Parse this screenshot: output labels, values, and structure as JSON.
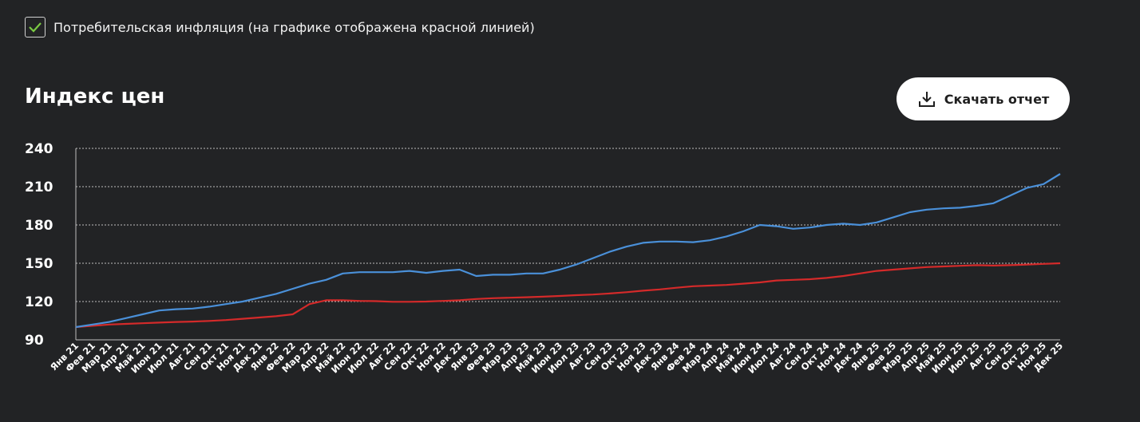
{
  "filter": {
    "checked": true,
    "label": "Потребительская инфляция (на графике отображена красной линией)"
  },
  "header": {
    "title": "Индекс цен",
    "download_label": "Скачать отчет",
    "download_icon": "download-icon"
  },
  "colors": {
    "background": "#222325",
    "price_index_line": "#4a90d9",
    "inflation_line": "#d42a2a",
    "check": "#7ac943",
    "grid": "#bdbdbd"
  },
  "chart_data": {
    "type": "line",
    "title": "",
    "xlabel": "",
    "ylabel": "",
    "ylim": [
      90,
      240
    ],
    "yticks": [
      90,
      120,
      150,
      180,
      210,
      240
    ],
    "grid": "horizontal dotted",
    "categories": [
      "Янв 21",
      "Фев 21",
      "Мар 21",
      "Апр 21",
      "Май 21",
      "Июн 21",
      "Июл 21",
      "Авг 21",
      "Сен 21",
      "Окт 21",
      "Ноя 21",
      "Дек 21",
      "Янв 22",
      "Фев 22",
      "Мар 22",
      "Апр 22",
      "Май 22",
      "Июн 22",
      "Июл 22",
      "Авг 22",
      "Сен 22",
      "Окт 22",
      "Ноя 22",
      "Дек 22",
      "Янв 23",
      "Фев 23",
      "Мар 23",
      "Апр 23",
      "Май 23",
      "Июн 23",
      "Июл 23",
      "Авг 23",
      "Сен 23",
      "Окт 23",
      "Ноя 23",
      "Дек 23",
      "Янв 24",
      "Фев 24",
      "Мар 24",
      "Апр 24",
      "Май 24",
      "Июн 24",
      "Июл 24",
      "Авг 24",
      "Сен 24",
      "Окт 24",
      "Ноя 24",
      "Дек 24",
      "Янв 25",
      "Фев 25",
      "Мар 25",
      "Апр 25",
      "Май 25",
      "Июн 25",
      "Июл 25",
      "Авг 25",
      "Сен 25",
      "Окт 25",
      "Ноя 25",
      "Дек 25"
    ],
    "series": [
      {
        "key": "price_index",
        "values": [
          100,
          102,
          104,
          107,
          110,
          113,
          114,
          114.5,
          116,
          118,
          120,
          123,
          126,
          130,
          134,
          137,
          142,
          143,
          143,
          143,
          144,
          142.5,
          144,
          145,
          140,
          141,
          141,
          142,
          142,
          145,
          149,
          154,
          159,
          163,
          166,
          167,
          167,
          166.5,
          168,
          171,
          175,
          180,
          179,
          177,
          178,
          180,
          181,
          180,
          182,
          186,
          190,
          192,
          193,
          193.5,
          195,
          197,
          203,
          209,
          212,
          220
        ]
      },
      {
        "key": "inflation",
        "values": [
          100,
          101,
          102,
          102.5,
          103,
          103.5,
          104,
          104.3,
          104.8,
          105.5,
          106.5,
          107.5,
          108.5,
          110,
          118,
          121,
          121,
          120.5,
          120.3,
          119.8,
          119.8,
          120,
          120.5,
          121,
          122,
          122.6,
          123,
          123.4,
          123.8,
          124.4,
          125,
          125.5,
          126.3,
          127.3,
          128.5,
          129.5,
          130.8,
          132,
          132.5,
          133,
          134,
          135,
          136.5,
          137,
          137.5,
          138.5,
          140,
          142,
          144,
          145,
          146,
          147,
          147.5,
          148,
          148.5,
          148.2,
          148.5,
          149,
          149.5,
          150
        ]
      }
    ]
  }
}
